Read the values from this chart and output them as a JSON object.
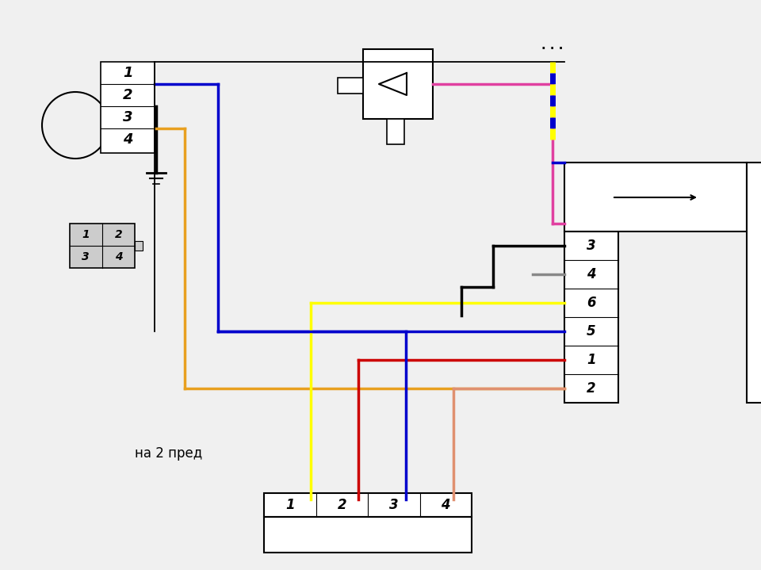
{
  "bg_color": "#f0f0f0",
  "wire_colors": {
    "blue": "#0000cc",
    "orange": "#e8a020",
    "black": "#000000",
    "yellow": "#ffff00",
    "pink": "#e040a0",
    "red": "#cc0000",
    "salmon": "#e09070",
    "gray": "#888888",
    "darkgray": "#555555"
  },
  "relay_pins": [
    "3",
    "4",
    "6",
    "5",
    "1",
    "2"
  ],
  "motor_pins": [
    "1",
    "2",
    "3",
    "4"
  ],
  "bottom_pins": [
    "1",
    "2",
    "3",
    "4"
  ],
  "label_na2pred": "на 2 пред",
  "dots_text": ". . ."
}
